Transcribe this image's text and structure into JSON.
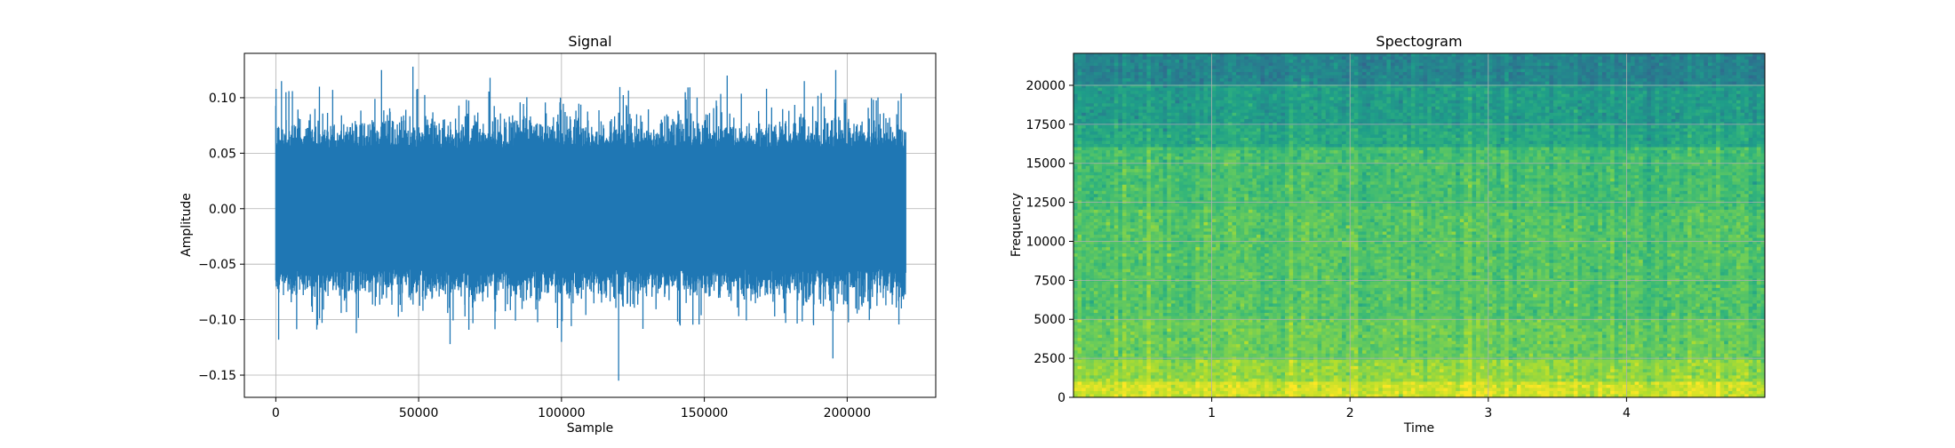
{
  "chart_data": [
    {
      "type": "line",
      "title": "Signal",
      "xlabel": "Sample",
      "ylabel": "Amplitude",
      "xlim": [
        -11000,
        231000
      ],
      "ylim": [
        -0.17,
        0.14
      ],
      "xticks": [
        0,
        50000,
        100000,
        150000,
        200000
      ],
      "xtick_labels": [
        "0",
        "50000",
        "100000",
        "150000",
        "200000"
      ],
      "yticks": [
        -0.15,
        -0.1,
        -0.05,
        0.0,
        0.05,
        0.1
      ],
      "ytick_labels": [
        "−0.15",
        "−0.10",
        "−0.05",
        "0.00",
        "0.05",
        "0.10"
      ],
      "grid": true,
      "series": [
        {
          "color": "#1f77b4",
          "x_range": [
            0,
            220500
          ],
          "typical_envelope": [
            -0.07,
            0.07
          ],
          "peaks": [
            {
              "x": 2000,
              "y": 0.115
            },
            {
              "x": 1000,
              "y": -0.118
            },
            {
              "x": 37000,
              "y": 0.125
            },
            {
              "x": 48000,
              "y": 0.128
            },
            {
              "x": 120000,
              "y": -0.155
            },
            {
              "x": 158000,
              "y": 0.12
            },
            {
              "x": 196000,
              "y": 0.125
            },
            {
              "x": 195000,
              "y": -0.135
            },
            {
              "x": 61000,
              "y": -0.122
            },
            {
              "x": 75000,
              "y": 0.118
            },
            {
              "x": 100000,
              "y": -0.12
            },
            {
              "x": 185000,
              "y": 0.115
            }
          ]
        }
      ]
    },
    {
      "type": "heatmap",
      "title": "Spectogram",
      "xlabel": "Time",
      "ylabel": "Frequency",
      "xlim": [
        0.0,
        5.0
      ],
      "ylim": [
        0,
        22050
      ],
      "xticks": [
        1,
        2,
        3,
        4
      ],
      "xtick_labels": [
        "1",
        "2",
        "3",
        "4"
      ],
      "yticks": [
        0,
        2500,
        5000,
        7500,
        10000,
        12500,
        15000,
        17500,
        20000
      ],
      "ytick_labels": [
        "0",
        "2500",
        "5000",
        "7500",
        "10000",
        "12500",
        "15000",
        "17500",
        "20000"
      ],
      "grid": true,
      "colormap": "viridis",
      "frequency_bands": [
        {
          "from": 0,
          "to": 1000,
          "level": 0.93
        },
        {
          "from": 1000,
          "to": 2500,
          "level": 0.84
        },
        {
          "from": 2500,
          "to": 5000,
          "level": 0.77
        },
        {
          "from": 5000,
          "to": 12000,
          "level": 0.73
        },
        {
          "from": 12000,
          "to": 16000,
          "level": 0.7
        },
        {
          "from": 16000,
          "to": 17500,
          "level": 0.6
        },
        {
          "from": 17500,
          "to": 20000,
          "level": 0.55
        },
        {
          "from": 20000,
          "to": 22050,
          "level": 0.45
        }
      ]
    }
  ]
}
